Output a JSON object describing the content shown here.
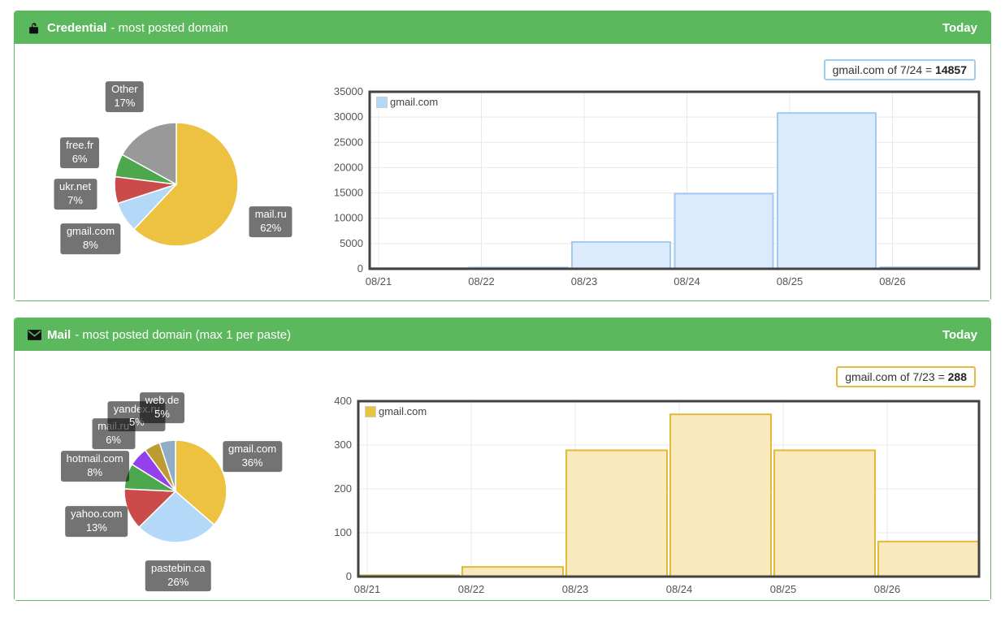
{
  "panels": [
    {
      "title": "Credential",
      "subtitle": "- most posted domain",
      "badge": "Today",
      "tooltip_text": "gmail.com of 7/24 = ",
      "tooltip_value": "14857",
      "accent": "#9fcdf0"
    },
    {
      "title": "Mail",
      "subtitle": "- most posted domain (max 1 per paste)",
      "badge": "Today",
      "tooltip_text": "gmail.com of 7/23 = ",
      "tooltip_value": "288",
      "accent": "#e4bb3d"
    }
  ],
  "chart_data": [
    {
      "type": "pie",
      "panel": "Credential",
      "legend_position": "outside-labels",
      "slices": [
        {
          "label": "mail.ru",
          "pct": 62,
          "color": "#edc240"
        },
        {
          "label": "gmail.com",
          "pct": 8,
          "color": "#b4d8f7"
        },
        {
          "label": "ukr.net",
          "pct": 7,
          "color": "#cb4b4b"
        },
        {
          "label": "free.fr",
          "pct": 6,
          "color": "#4da74d"
        },
        {
          "label": "Other",
          "pct": 17,
          "color": "#999999"
        }
      ]
    },
    {
      "type": "bar",
      "panel": "Credential",
      "legend": "gmail.com",
      "categories": [
        "08/21",
        "08/22",
        "08/23",
        "08/24",
        "08/25",
        "08/26"
      ],
      "values": [
        150,
        250,
        5300,
        14857,
        30800,
        300
      ],
      "xlabel": "",
      "ylabel": "",
      "ylim": [
        0,
        35000
      ],
      "ytick_step": 5000,
      "grid": true,
      "legend_position": "top-left-inside",
      "bar_fill": "#dcebfb",
      "bar_stroke": "#a0cbf0",
      "legend_swatch": "#b4d9f7"
    },
    {
      "type": "pie",
      "panel": "Mail",
      "legend_position": "outside-labels",
      "slices": [
        {
          "label": "gmail.com",
          "pct": 36,
          "color": "#edc240"
        },
        {
          "label": "pastebin.ca",
          "pct": 26,
          "color": "#b4d8f7"
        },
        {
          "label": "yahoo.com",
          "pct": 13,
          "color": "#cb4b4b"
        },
        {
          "label": "hotmail.com",
          "pct": 8,
          "color": "#4da74d"
        },
        {
          "label": "mail.ru",
          "pct": 6,
          "color": "#9440ed"
        },
        {
          "label": "yandex.ru",
          "pct": 5,
          "color": "#bd9b33"
        },
        {
          "label": "web.de",
          "pct": 5,
          "color": "#90acc6"
        }
      ]
    },
    {
      "type": "bar",
      "panel": "Mail",
      "legend": "gmail.com",
      "categories": [
        "08/21",
        "08/22",
        "08/23",
        "08/24",
        "08/25",
        "08/26"
      ],
      "values": [
        3,
        22,
        288,
        370,
        288,
        80
      ],
      "xlabel": "",
      "ylabel": "",
      "ylim": [
        0,
        400
      ],
      "ytick_step": 100,
      "grid": true,
      "legend_position": "top-left-inside",
      "bar_fill": "#f9e9bd",
      "bar_stroke": "#e3b93a",
      "legend_swatch": "#e7c440"
    }
  ]
}
